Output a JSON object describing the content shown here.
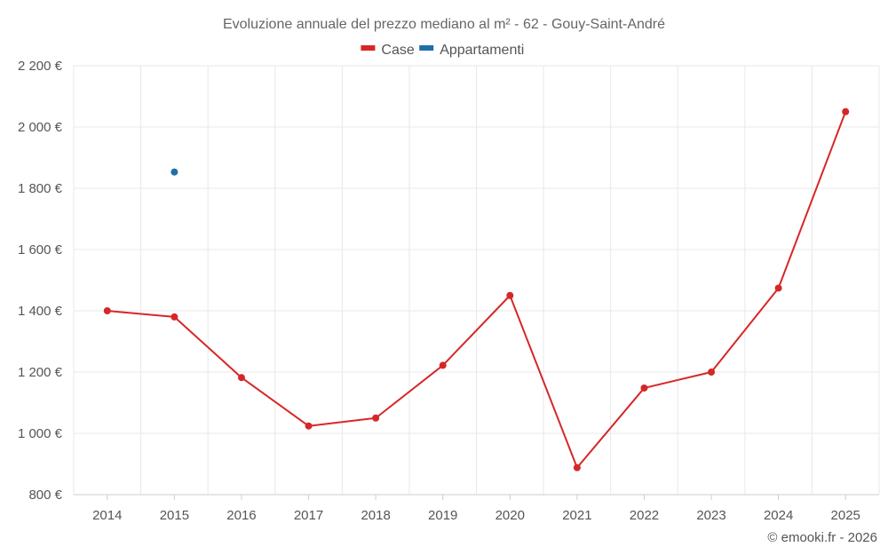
{
  "chart_data": {
    "type": "line",
    "title": "Evoluzione annuale del prezzo mediano al m² - 62 - Gouy-Saint-André",
    "categories": [
      "2014",
      "2015",
      "2016",
      "2017",
      "2018",
      "2019",
      "2020",
      "2021",
      "2022",
      "2023",
      "2024",
      "2025"
    ],
    "series": [
      {
        "name": "Case",
        "color": "#d62728",
        "values": [
          1400,
          1380,
          1182,
          1024,
          1050,
          1222,
          1450,
          888,
          1148,
          1200,
          1474,
          2050
        ]
      },
      {
        "name": "Appartamenti",
        "color": "#1f6fa8",
        "values": [
          null,
          1853,
          null,
          null,
          null,
          null,
          null,
          null,
          null,
          null,
          null,
          null
        ]
      }
    ],
    "ylim": [
      800,
      2200
    ],
    "yticks": [
      800,
      1000,
      1200,
      1400,
      1600,
      1800,
      2000,
      2200
    ],
    "ytick_labels": [
      "800 €",
      "1 000 €",
      "1 200 €",
      "1 400 €",
      "1 600 €",
      "1 800 €",
      "2 000 €",
      "2 200 €"
    ],
    "xlabel": "",
    "ylabel": "",
    "grid": true,
    "legend_position": "top-center"
  },
  "credit": "© emooki.fr - 2026"
}
